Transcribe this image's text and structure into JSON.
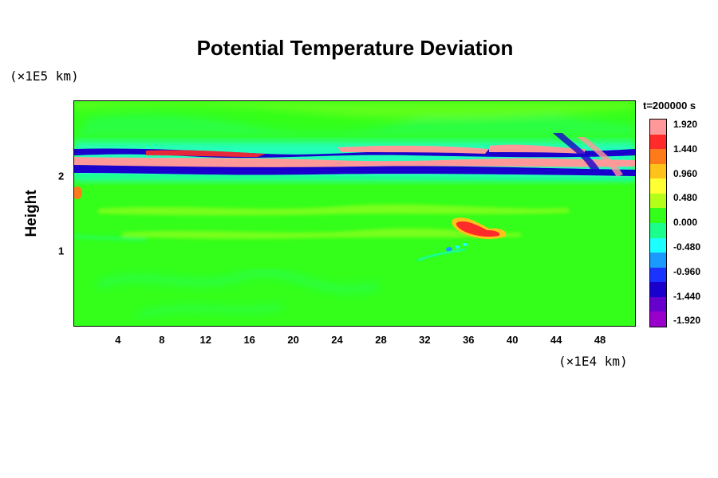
{
  "chart_data": {
    "type": "heatmap",
    "title": "Potential Temperature Deviation",
    "ylabel": "Height",
    "y_scale_note": "(×1E5 km)",
    "x_scale_note": "(×1E4 km)",
    "time_label": "t=200000 s",
    "x_ticks": [
      "4",
      "8",
      "12",
      "16",
      "20",
      "24",
      "28",
      "32",
      "36",
      "40",
      "44",
      "48"
    ],
    "x_tick_values": [
      4,
      8,
      12,
      16,
      20,
      24,
      28,
      32,
      36,
      40,
      44,
      48
    ],
    "y_ticks": [
      "1",
      "2"
    ],
    "y_tick_values": [
      1,
      2
    ],
    "xlim": [
      0,
      51.2
    ],
    "ylim": [
      0,
      3.0
    ],
    "colorbar": {
      "labels": [
        "1.920",
        "1.440",
        "0.960",
        "0.480",
        "0.000",
        "-0.480",
        "-0.960",
        "-1.440",
        "-1.920"
      ],
      "range": [
        -1.92,
        1.92
      ],
      "colors_top_to_bottom": [
        "#ff9999",
        "#ff2a2a",
        "#ff7a1a",
        "#ffc21a",
        "#ffff33",
        "#b3ff1a",
        "#33ff1a",
        "#1aff8c",
        "#1affff",
        "#1a99ff",
        "#1a33ff",
        "#1a00cc",
        "#6600cc",
        "#9900cc"
      ]
    },
    "features": [
      {
        "name": "upper-band",
        "description": "strong alternating positive/negative layer",
        "y_range": [
          1.95,
          2.4
        ],
        "x_range": [
          0,
          51.2
        ]
      },
      {
        "name": "warm-anomaly",
        "center_x": 36.5,
        "center_y": 1.25,
        "value": 1.9
      },
      {
        "name": "cold-spots",
        "center_x": 34.5,
        "center_y": 1.0,
        "value": -0.7
      }
    ]
  }
}
